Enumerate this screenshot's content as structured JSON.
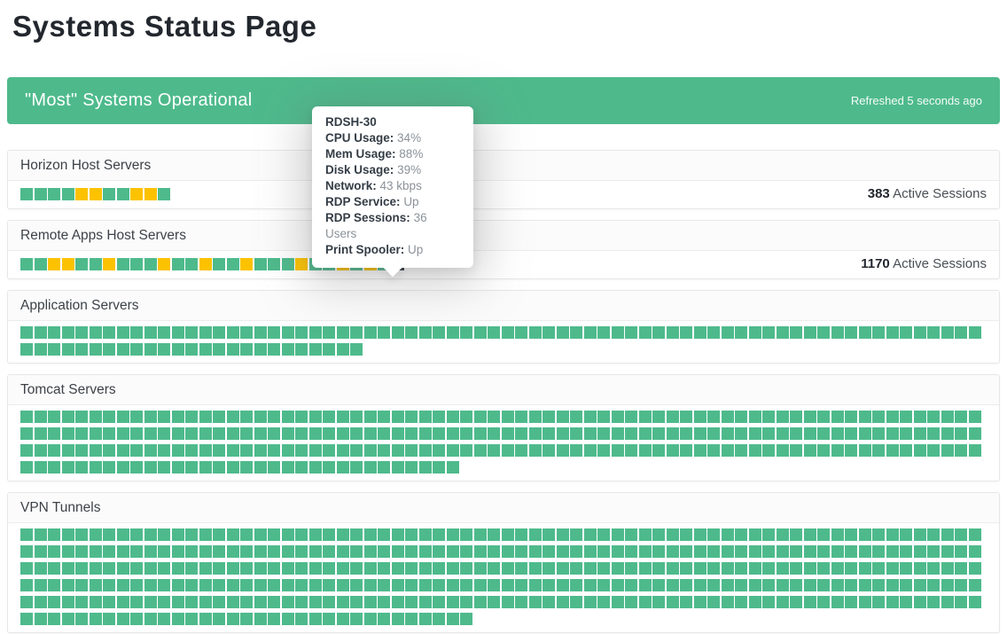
{
  "page": {
    "title": "Systems Status Page"
  },
  "banner": {
    "status_text": "\"Most\" Systems Operational",
    "refreshed_text": "Refreshed 5 seconds ago",
    "color": "#4eba8c"
  },
  "colors": {
    "ok": "#4eba8c",
    "warn": "#fcc200",
    "selected": "#333a45"
  },
  "sections": [
    {
      "title": "Horizon Host Servers",
      "active_sessions": "383",
      "active_sessions_label": "Active Sessions",
      "squares": [
        "ok",
        "ok",
        "ok",
        "ok",
        "warn",
        "warn",
        "ok",
        "ok",
        "warn",
        "warn",
        "ok"
      ]
    },
    {
      "title": "Remote Apps Host Servers",
      "active_sessions": "1170",
      "active_sessions_label": "Active Sessions",
      "squares": [
        "ok",
        "ok",
        "warn",
        "warn",
        "ok",
        "ok",
        "warn",
        "ok",
        "ok",
        "ok",
        "warn",
        "ok",
        "ok",
        "warn",
        "ok",
        "ok",
        "warn",
        "ok",
        "ok",
        "ok",
        "warn",
        "ok",
        "ok",
        "warn",
        "ok",
        "warn",
        "ok",
        "selected"
      ]
    },
    {
      "title": "Application Servers",
      "ok_count": 95
    },
    {
      "title": "Tomcat Servers",
      "ok_count": 242
    },
    {
      "title": "VPN Tunnels",
      "ok_count": 383
    }
  ],
  "tooltip": {
    "title": "RDSH-30",
    "rows": [
      {
        "label": "CPU Usage:",
        "value": "34%"
      },
      {
        "label": "Mem Usage:",
        "value": "88%"
      },
      {
        "label": "Disk Usage:",
        "value": "39%"
      },
      {
        "label": "Network:",
        "value": "43 kbps"
      },
      {
        "label": "RDP Service:",
        "value": "Up"
      },
      {
        "label": "RDP Sessions:",
        "value": "36 Users"
      },
      {
        "label": "Print Spooler:",
        "value": "Up"
      }
    ]
  }
}
